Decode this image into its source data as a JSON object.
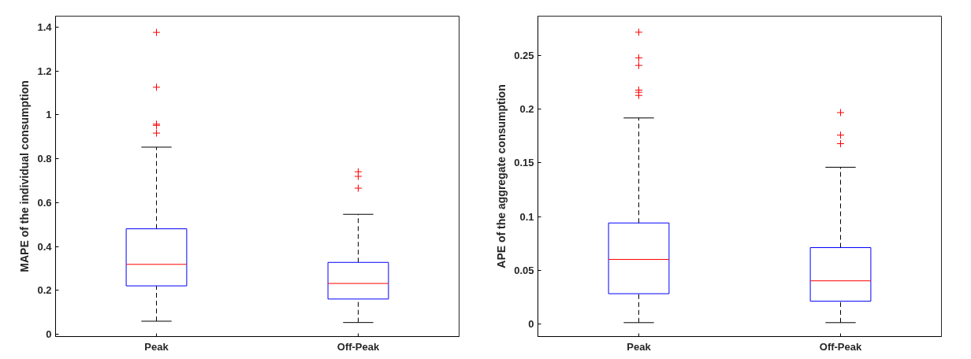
{
  "chart_data": [
    {
      "type": "box",
      "ylabel": "MAPE of the individual consumption",
      "categories": [
        "Peak",
        "Off-Peak"
      ],
      "ylim": [
        -0.01,
        1.45
      ],
      "yticks": [
        0,
        0.2,
        0.4,
        0.6,
        0.8,
        1,
        1.2,
        1.4
      ],
      "grid": false,
      "boxes": [
        {
          "low": 0.06,
          "q1": 0.221,
          "median": 0.319,
          "q3": 0.481,
          "high": 0.853,
          "outliers": [
            1.376,
            1.126,
            0.958,
            0.952,
            0.917
          ]
        },
        {
          "low": 0.054,
          "q1": 0.161,
          "median": 0.232,
          "q3": 0.328,
          "high": 0.547,
          "outliers": [
            0.741,
            0.72,
            0.666
          ]
        }
      ]
    },
    {
      "type": "box",
      "ylabel": "APE of the aggregate consumption",
      "categories": [
        "Peak",
        "Off-Peak"
      ],
      "ylim": [
        -0.012,
        0.287
      ],
      "yticks": [
        0,
        0.05,
        0.1,
        0.15,
        0.2,
        0.25
      ],
      "grid": false,
      "boxes": [
        {
          "low": 0.001,
          "q1": 0.028,
          "median": 0.06,
          "q3": 0.094,
          "high": 0.192,
          "outliers": [
            0.272,
            0.248,
            0.241,
            0.218,
            0.216,
            0.213
          ]
        },
        {
          "low": 0.001,
          "q1": 0.021,
          "median": 0.04,
          "q3": 0.071,
          "high": 0.146,
          "outliers": [
            0.197,
            0.176,
            0.168
          ]
        }
      ]
    }
  ]
}
